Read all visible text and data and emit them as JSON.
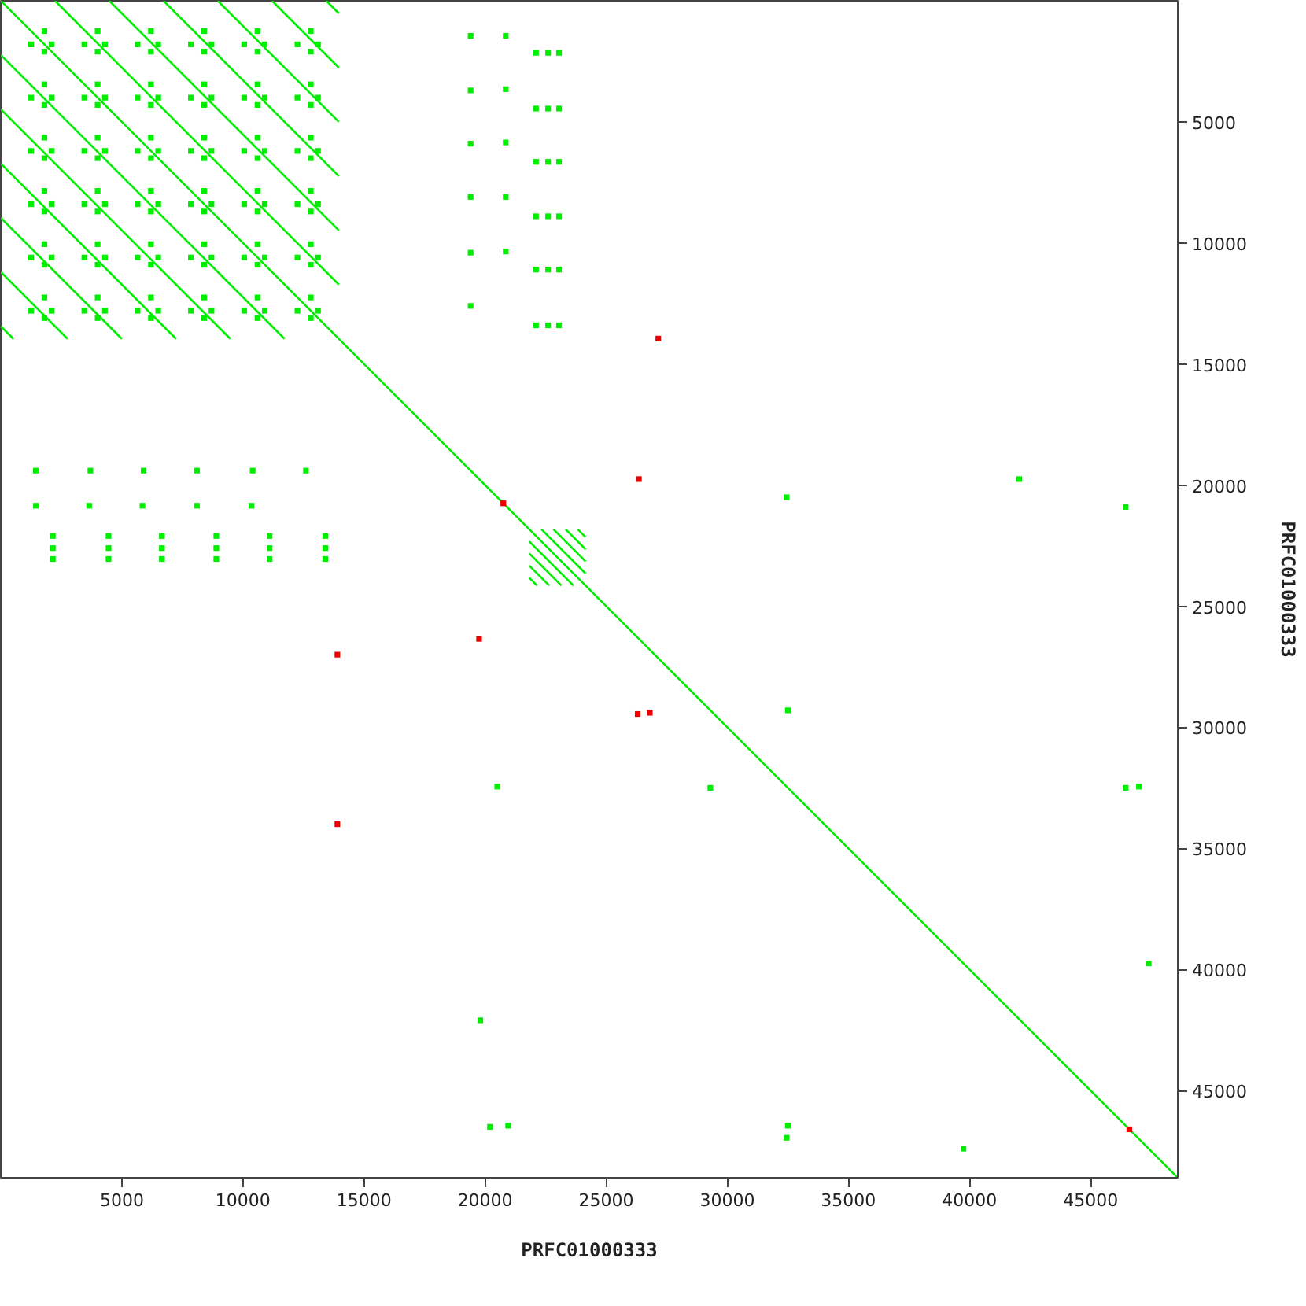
{
  "chart_data": {
    "type": "line",
    "xlabel": "PRFC01000333",
    "ylabel": "PRFC01000333",
    "xlim": [
      0,
      48600
    ],
    "ylim": [
      48600,
      0
    ],
    "xticks": [
      5000,
      10000,
      15000,
      20000,
      25000,
      30000,
      35000,
      40000,
      45000
    ],
    "yticks": [
      5000,
      10000,
      15000,
      20000,
      25000,
      30000,
      35000,
      40000,
      45000
    ],
    "series": [
      {
        "color": "#00ee00",
        "x": [
          0,
          48600
        ],
        "values": [
          0,
          48600
        ]
      },
      {
        "color": "#00ee00",
        "x": [
          2240,
          13960
        ],
        "values": [
          0,
          11720
        ]
      },
      {
        "color": "#00ee00",
        "x": [
          4480,
          13960
        ],
        "values": [
          0,
          9480
        ]
      },
      {
        "color": "#00ee00",
        "x": [
          6720,
          13960
        ],
        "values": [
          0,
          7240
        ]
      },
      {
        "color": "#00ee00",
        "x": [
          8960,
          13960
        ],
        "values": [
          0,
          5000
        ]
      },
      {
        "color": "#00ee00",
        "x": [
          11200,
          13960
        ],
        "values": [
          0,
          2760
        ]
      },
      {
        "color": "#00ee00",
        "x": [
          13440,
          13960
        ],
        "values": [
          0,
          520
        ]
      },
      {
        "color": "#00ee00",
        "x": [
          0,
          11720
        ],
        "values": [
          2240,
          13960
        ]
      },
      {
        "color": "#00ee00",
        "x": [
          0,
          9480
        ],
        "values": [
          4480,
          13960
        ]
      },
      {
        "color": "#00ee00",
        "x": [
          0,
          7240
        ],
        "values": [
          6720,
          13960
        ]
      },
      {
        "color": "#00ee00",
        "x": [
          0,
          5000
        ],
        "values": [
          8960,
          13960
        ]
      },
      {
        "color": "#00ee00",
        "x": [
          0,
          2760
        ],
        "values": [
          11200,
          13960
        ]
      },
      {
        "color": "#00ee00",
        "x": [
          0,
          520
        ],
        "values": [
          13440,
          13960
        ]
      },
      {
        "color": "#00ee00",
        "x": [
          23820,
          24150
        ],
        "values": [
          21820,
          22150
        ]
      },
      {
        "color": "#00ee00",
        "x": [
          23320,
          24150
        ],
        "values": [
          21820,
          22650
        ]
      },
      {
        "color": "#00ee00",
        "x": [
          22820,
          24150
        ],
        "values": [
          21820,
          23150
        ]
      },
      {
        "color": "#00ee00",
        "x": [
          22320,
          24150
        ],
        "values": [
          21820,
          23650
        ]
      },
      {
        "color": "#00ee00",
        "x": [
          21820,
          23650
        ],
        "values": [
          22320,
          24150
        ]
      },
      {
        "color": "#00ee00",
        "x": [
          21820,
          23150
        ],
        "values": [
          22820,
          24150
        ]
      },
      {
        "color": "#00ee00",
        "x": [
          21820,
          22650
        ],
        "values": [
          23320,
          24150
        ]
      },
      {
        "color": "#00ee00",
        "x": [
          21820,
          22150
        ],
        "values": [
          23820,
          24150
        ]
      },
      {
        "type": "scatter",
        "marker": "square",
        "color": "#00ee00",
        "x": [
          19400,
          19400,
          19400,
          19400,
          19400,
          19400,
          20850,
          20850,
          20850,
          20850,
          20850,
          22100,
          22600,
          23050,
          22100,
          22600,
          23050,
          22100,
          22600,
          23050,
          22100,
          22600,
          23050,
          22100,
          22600,
          23050,
          22100,
          22600,
          23050,
          1450,
          3700,
          5900,
          8100,
          10400,
          12600,
          1450,
          3650,
          5850,
          8100,
          10350,
          2150,
          2150,
          2150,
          4450,
          4450,
          4450,
          6650,
          6650,
          6650,
          8900,
          8900,
          8900,
          11100,
          11100,
          11100,
          13400,
          13400,
          13400
        ],
        "values": [
          1450,
          3700,
          5900,
          8100,
          10400,
          12600,
          1450,
          3650,
          5850,
          8100,
          10350,
          2150,
          2150,
          2150,
          4450,
          4450,
          4450,
          6650,
          6650,
          6650,
          8900,
          8900,
          8900,
          11100,
          11100,
          11100,
          13400,
          13400,
          13400,
          19400,
          19400,
          19400,
          19400,
          19400,
          19400,
          20850,
          20850,
          20850,
          20850,
          20850,
          22100,
          22600,
          23050,
          22100,
          22600,
          23050,
          22100,
          22600,
          23050,
          22100,
          22600,
          23050,
          22100,
          22600,
          23050,
          22100,
          22600,
          23050
        ]
      },
      {
        "type": "scatter",
        "marker": "square",
        "color": "#00ee00",
        "x": [
          42050,
          46450,
          32450,
          32500,
          20500,
          29300,
          46450,
          47000,
          47400,
          19800,
          20200,
          20950,
          32500,
          32450,
          39750
        ],
        "values": [
          19750,
          20900,
          20500,
          29300,
          32450,
          32500,
          32500,
          32450,
          39750,
          42100,
          46500,
          46450,
          46450,
          46950,
          47400
        ]
      },
      {
        "type": "scatter",
        "marker": "square",
        "color": "#00ee00",
        "x": [
          2100,
          1800,
          1800,
          1250,
          4300,
          4000,
          4000,
          3450,
          6500,
          6200,
          6200,
          5650,
          8700,
          8400,
          8400,
          7850,
          10900,
          10600,
          10600,
          10050,
          13100,
          12800,
          12800,
          12250,
          2100,
          1800,
          1800,
          1250,
          4300,
          4000,
          4000,
          3450,
          6500,
          6200,
          6200,
          5650,
          8700,
          8400,
          8400,
          7850,
          10900,
          10600,
          10600,
          10050,
          13100,
          12800,
          12800,
          12250,
          2100,
          1800,
          1800,
          1250,
          4300,
          4000,
          4000,
          3450,
          6500,
          6200,
          6200,
          5650,
          8700,
          8400,
          8400,
          7850,
          10900,
          10600,
          10600,
          10050,
          13100,
          12800,
          12800,
          12250,
          2100,
          1800,
          1800,
          1250,
          4300,
          4000,
          4000,
          3450,
          6500,
          6200,
          6200,
          5650,
          8700,
          8400,
          8400,
          7850,
          10900,
          10600,
          10600,
          10050,
          13100,
          12800,
          12800,
          12250,
          2100,
          1800,
          1800,
          1250,
          4300,
          4000,
          4000,
          3450,
          6500,
          6200,
          6200,
          5650,
          8700,
          8400,
          8400,
          7850,
          10900,
          10600,
          10600,
          10050,
          13100,
          12800,
          12800,
          12250,
          2100,
          1800,
          1800,
          1250,
          4300,
          4000,
          4000,
          3450,
          6500,
          6200,
          6200,
          5650,
          8700,
          8400,
          8400,
          7850,
          10900,
          10600,
          10600,
          10050,
          13100,
          12800,
          12800,
          12250
        ],
        "values": [
          1800,
          2100,
          1250,
          1800,
          1800,
          2100,
          1250,
          1800,
          1800,
          2100,
          1250,
          1800,
          1800,
          2100,
          1250,
          1800,
          1800,
          2100,
          1250,
          1800,
          1800,
          2100,
          1250,
          1800,
          4000,
          4300,
          3450,
          4000,
          4000,
          4300,
          3450,
          4000,
          4000,
          4300,
          3450,
          4000,
          4000,
          4300,
          3450,
          4000,
          4000,
          4300,
          3450,
          4000,
          4000,
          4300,
          3450,
          4000,
          6200,
          6500,
          5650,
          6200,
          6200,
          6500,
          5650,
          6200,
          6200,
          6500,
          5650,
          6200,
          6200,
          6500,
          5650,
          6200,
          6200,
          6500,
          5650,
          6200,
          6200,
          6500,
          5650,
          6200,
          8400,
          8700,
          7850,
          8400,
          8400,
          8700,
          7850,
          8400,
          8400,
          8700,
          7850,
          8400,
          8400,
          8700,
          7850,
          8400,
          8400,
          8700,
          7850,
          8400,
          8400,
          8700,
          7850,
          8400,
          10600,
          10900,
          10050,
          10600,
          10600,
          10900,
          10050,
          10600,
          10600,
          10900,
          10050,
          10600,
          10600,
          10900,
          10050,
          10600,
          10600,
          10900,
          10050,
          10600,
          10600,
          10900,
          10050,
          10600,
          12800,
          13100,
          12250,
          12800,
          12800,
          13100,
          12250,
          12800,
          12800,
          13100,
          12250,
          12800,
          12800,
          13100,
          12250,
          12800,
          12800,
          13100,
          12250,
          12800,
          12800,
          13100,
          12250,
          12800
        ]
      },
      {
        "type": "scatter",
        "marker": "square",
        "color": "#ee0000",
        "x": [
          27150,
          20750,
          26350,
          19750,
          13900,
          26300,
          26800,
          13900,
          46600
        ],
        "values": [
          13950,
          20750,
          19750,
          26350,
          27000,
          29450,
          29400,
          34000,
          46600
        ]
      }
    ]
  }
}
